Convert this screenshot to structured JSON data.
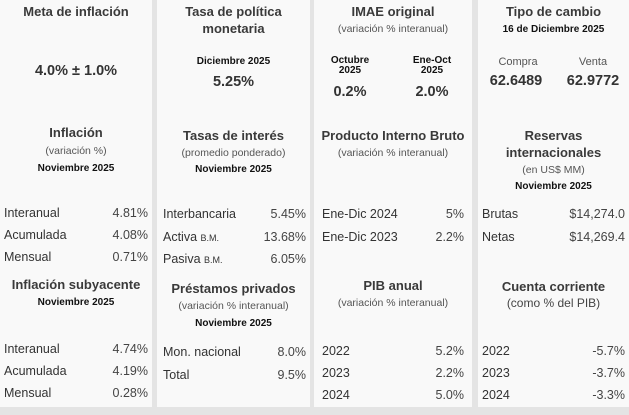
{
  "meta_inflacion": {
    "title": "Meta de inflación",
    "value": "4.0% ± 1.0%"
  },
  "inflacion": {
    "title": "Inflación",
    "subtitle": "(variación %)",
    "date": "Noviembre 2025",
    "rows": [
      {
        "label": "Interanual",
        "value": "4.81%"
      },
      {
        "label": "Acumulada",
        "value": "4.08%"
      },
      {
        "label": "Mensual",
        "value": "0.71%"
      }
    ]
  },
  "subyacente": {
    "title": "Inflación subyacente",
    "date": "Noviembre 2025",
    "rows": [
      {
        "label": "Interanual",
        "value": "4.74%"
      },
      {
        "label": "Acumulada",
        "value": "4.19%"
      },
      {
        "label": "Mensual",
        "value": "0.28%"
      }
    ]
  },
  "tpm": {
    "title1": "Tasa de política",
    "title2": "monetaria",
    "date": "Diciembre 2025",
    "value": "5.25%"
  },
  "tasas": {
    "title": "Tasas de interés",
    "subtitle": "(promedio ponderado)",
    "date": "Noviembre 2025",
    "rows": [
      {
        "label": "Interbancaria",
        "suffix": "",
        "value": "5.45%"
      },
      {
        "label": "Activa",
        "suffix": "B.M.",
        "value": "13.68%"
      },
      {
        "label": "Pasiva",
        "suffix": "B.M.",
        "value": "6.05%"
      }
    ]
  },
  "prestamos": {
    "title": "Préstamos privados",
    "subtitle": "(variación % interanual)",
    "date": "Noviembre 2025",
    "rows": [
      {
        "label": "Mon. nacional",
        "value": "8.0%"
      },
      {
        "label": "Total",
        "value": "9.5%"
      }
    ]
  },
  "imae": {
    "title": "IMAE original",
    "subtitle": "(variación % interanual)",
    "items": [
      {
        "label1": "Octubre",
        "label2": "2025",
        "value": "0.2%"
      },
      {
        "label1": "Ene-Oct",
        "label2": "2025",
        "value": "2.0%"
      }
    ]
  },
  "pib": {
    "title": "Producto Interno Bruto",
    "subtitle": "(variación % interanual)",
    "rows": [
      {
        "label": "Ene-Dic 2024",
        "value": "5%"
      },
      {
        "label": "Ene-Dic 2023",
        "value": "2.2%"
      }
    ]
  },
  "pib_anual": {
    "title": "PIB anual",
    "subtitle": "(variación % interanual)",
    "rows": [
      {
        "label": "2022",
        "value": "5.2%"
      },
      {
        "label": "2023",
        "value": "2.2%"
      },
      {
        "label": "2024",
        "value": "5.0%"
      }
    ]
  },
  "tipo_cambio": {
    "title": "Tipo de cambio",
    "date": "16 de Diciembre 2025",
    "compra_label": "Compra",
    "compra": "62.6489",
    "venta_label": "Venta",
    "venta": "62.9772"
  },
  "reservas": {
    "title1": "Reservas",
    "title2": "internacionales",
    "subtitle": "(en US$ MM)",
    "date": "Noviembre 2025",
    "rows": [
      {
        "label": "Brutas",
        "value": "$14,274.0"
      },
      {
        "label": "Netas",
        "value": "$14,269.4"
      }
    ]
  },
  "cuenta": {
    "title": "Cuenta corriente",
    "subtitle": "(como % del PIB)",
    "rows": [
      {
        "label": "2022",
        "value": "-5.7%"
      },
      {
        "label": "2023",
        "value": "-3.7%"
      },
      {
        "label": "2024",
        "value": "-3.3%"
      }
    ]
  }
}
